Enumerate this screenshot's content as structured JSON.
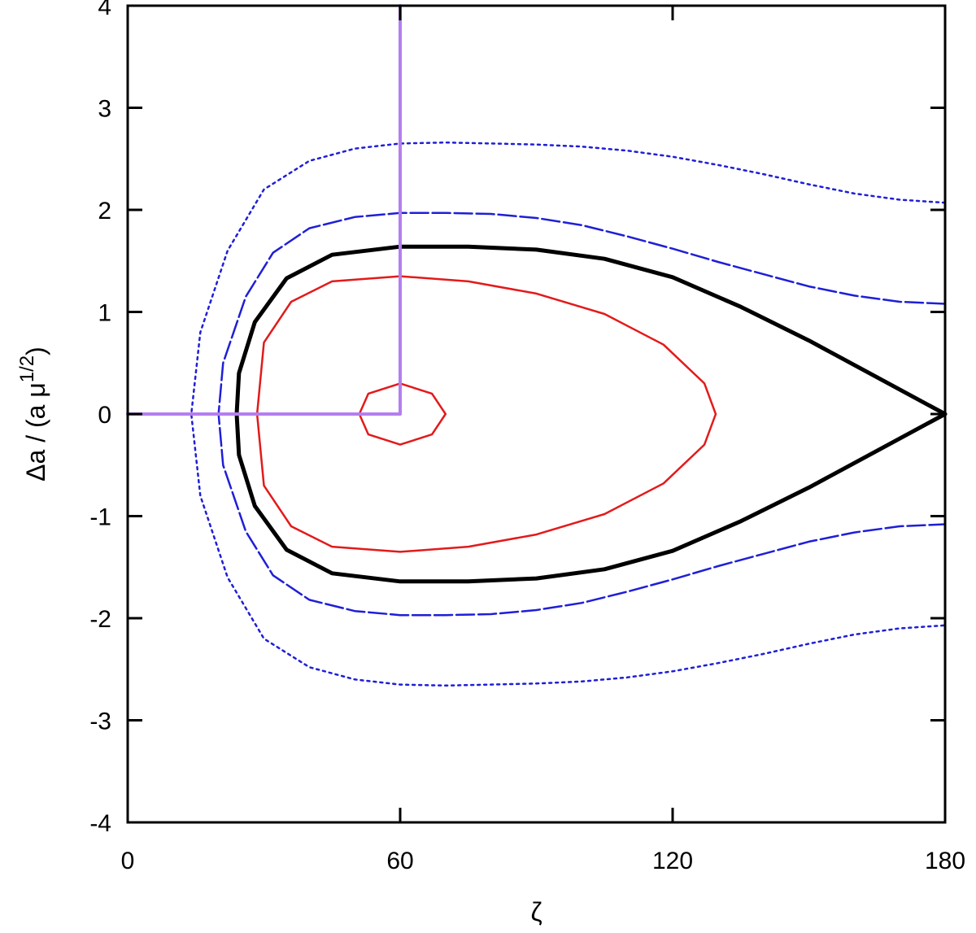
{
  "chart_data": {
    "type": "line",
    "xlabel": "ζ",
    "ylabel_main": "Δa / (a μ",
    "ylabel_sup": "1/2",
    "ylabel_end": ")",
    "xlim": [
      0,
      180
    ],
    "ylim": [
      -4,
      4
    ],
    "x_ticks": [
      0,
      60,
      120,
      180
    ],
    "x_tick_labels": [
      "0",
      "60",
      "120",
      "180"
    ],
    "y_ticks": [
      -4,
      -3,
      -2,
      -1,
      0,
      1,
      2,
      3,
      4
    ],
    "y_tick_labels": [
      "-4",
      "-3",
      "-2",
      "-1",
      "0",
      "1",
      "2",
      "3",
      "4"
    ],
    "grid": false,
    "colors": {
      "red": "#e31a1a",
      "black": "#000000",
      "blue": "#1f1fd6",
      "purple": "#b47ef0"
    },
    "series": [
      {
        "style": "red-solid",
        "closed": true,
        "points": [
          [
            60,
            0.3
          ],
          [
            67,
            0.2
          ],
          [
            70,
            0
          ],
          [
            67,
            -0.2
          ],
          [
            60,
            -0.3
          ],
          [
            53,
            -0.2
          ],
          [
            51,
            0
          ],
          [
            53,
            0.2
          ]
        ]
      },
      {
        "style": "red-solid",
        "closed": true,
        "points": [
          [
            60,
            1.35
          ],
          [
            75,
            1.3
          ],
          [
            90,
            1.18
          ],
          [
            105,
            0.98
          ],
          [
            118,
            0.68
          ],
          [
            127,
            0.3
          ],
          [
            129.5,
            0
          ],
          [
            127,
            -0.3
          ],
          [
            118,
            -0.68
          ],
          [
            105,
            -0.98
          ],
          [
            90,
            -1.18
          ],
          [
            75,
            -1.3
          ],
          [
            60,
            -1.35
          ],
          [
            45,
            -1.3
          ],
          [
            36,
            -1.1
          ],
          [
            30,
            -0.7
          ],
          [
            28.5,
            0
          ],
          [
            30,
            0.7
          ],
          [
            36,
            1.1
          ],
          [
            45,
            1.3
          ]
        ]
      },
      {
        "style": "black-thick",
        "closed": false,
        "points": [
          [
            180,
            0
          ],
          [
            165,
            -0.36
          ],
          [
            150,
            -0.72
          ],
          [
            135,
            -1.05
          ],
          [
            120,
            -1.34
          ],
          [
            105,
            -1.52
          ],
          [
            90,
            -1.61
          ],
          [
            75,
            -1.64
          ],
          [
            60,
            -1.64
          ],
          [
            45,
            -1.56
          ],
          [
            35,
            -1.33
          ],
          [
            28,
            -0.9
          ],
          [
            24.5,
            -0.4
          ],
          [
            24,
            0
          ],
          [
            24.5,
            0.4
          ],
          [
            28,
            0.9
          ],
          [
            35,
            1.33
          ],
          [
            45,
            1.56
          ],
          [
            60,
            1.64
          ],
          [
            75,
            1.64
          ],
          [
            90,
            1.61
          ],
          [
            105,
            1.52
          ],
          [
            120,
            1.34
          ],
          [
            135,
            1.05
          ],
          [
            150,
            0.72
          ],
          [
            165,
            0.36
          ],
          [
            180,
            0
          ]
        ]
      },
      {
        "style": "blue-dashed",
        "closed": false,
        "points": [
          [
            180,
            1.08
          ],
          [
            170,
            1.1
          ],
          [
            160,
            1.16
          ],
          [
            150,
            1.25
          ],
          [
            140,
            1.37
          ],
          [
            130,
            1.49
          ],
          [
            120,
            1.62
          ],
          [
            110,
            1.74
          ],
          [
            100,
            1.85
          ],
          [
            90,
            1.92
          ],
          [
            80,
            1.96
          ],
          [
            70,
            1.97
          ],
          [
            60,
            1.97
          ],
          [
            50,
            1.93
          ],
          [
            40,
            1.82
          ],
          [
            32,
            1.58
          ],
          [
            26,
            1.15
          ],
          [
            21,
            0.5
          ],
          [
            20,
            0
          ],
          [
            21,
            -0.5
          ],
          [
            26,
            -1.15
          ],
          [
            32,
            -1.58
          ],
          [
            40,
            -1.82
          ],
          [
            50,
            -1.93
          ],
          [
            60,
            -1.97
          ],
          [
            70,
            -1.97
          ],
          [
            80,
            -1.96
          ],
          [
            90,
            -1.92
          ],
          [
            100,
            -1.85
          ],
          [
            110,
            -1.74
          ],
          [
            120,
            -1.62
          ],
          [
            130,
            -1.49
          ],
          [
            140,
            -1.37
          ],
          [
            150,
            -1.25
          ],
          [
            160,
            -1.16
          ],
          [
            170,
            -1.1
          ],
          [
            180,
            -1.08
          ]
        ]
      },
      {
        "style": "blue-dotted",
        "closed": false,
        "points": [
          [
            180,
            2.07
          ],
          [
            170,
            2.1
          ],
          [
            160,
            2.16
          ],
          [
            150,
            2.25
          ],
          [
            140,
            2.35
          ],
          [
            130,
            2.44
          ],
          [
            120,
            2.52
          ],
          [
            110,
            2.58
          ],
          [
            100,
            2.62
          ],
          [
            90,
            2.64
          ],
          [
            80,
            2.65
          ],
          [
            70,
            2.66
          ],
          [
            60,
            2.65
          ],
          [
            50,
            2.6
          ],
          [
            40,
            2.48
          ],
          [
            30,
            2.2
          ],
          [
            22,
            1.6
          ],
          [
            16,
            0.8
          ],
          [
            14,
            0
          ],
          [
            16,
            -0.8
          ],
          [
            22,
            -1.6
          ],
          [
            30,
            -2.2
          ],
          [
            40,
            -2.48
          ],
          [
            50,
            -2.6
          ],
          [
            60,
            -2.65
          ],
          [
            70,
            -2.66
          ],
          [
            80,
            -2.65
          ],
          [
            90,
            -2.64
          ],
          [
            100,
            -2.62
          ],
          [
            110,
            -2.58
          ],
          [
            120,
            -2.52
          ],
          [
            130,
            -2.44
          ],
          [
            140,
            -2.35
          ],
          [
            150,
            -2.25
          ],
          [
            160,
            -2.16
          ],
          [
            170,
            -2.1
          ],
          [
            180,
            -2.07
          ]
        ]
      },
      {
        "style": "purple-guide",
        "closed": false,
        "points": [
          [
            0,
            0
          ],
          [
            60,
            0
          ],
          [
            60,
            4
          ]
        ]
      }
    ]
  }
}
